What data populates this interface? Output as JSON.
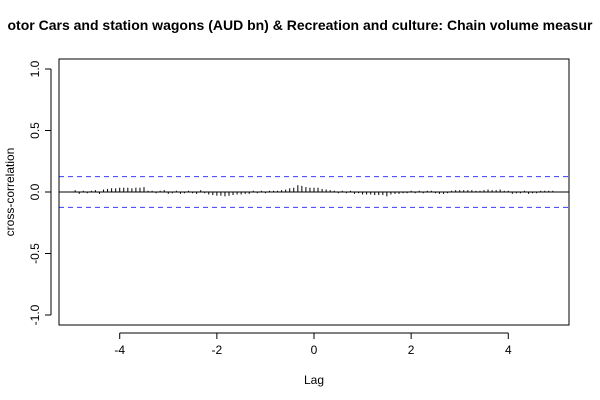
{
  "chart_data": {
    "type": "ccf",
    "title": "otor Cars and station wagons (AUD bn) & Recreation and culture: Chain volume measur",
    "xlabel": "Lag",
    "ylabel": "cross-correlation",
    "xlim": [
      -5.25,
      5.25
    ],
    "ylim": [
      -1.0,
      1.0
    ],
    "x_ticks": [
      "-4",
      "-2",
      "0",
      "2",
      "4"
    ],
    "x_tick_values": [
      -4,
      -2,
      0,
      2,
      4
    ],
    "y_ticks": [
      "-1.0",
      "-0.5",
      "0.0",
      "0.5",
      "1.0"
    ],
    "y_tick_values": [
      -1.0,
      -0.5,
      0.0,
      0.5,
      1.0
    ],
    "confidence_limit": 0.125,
    "confidence_color": "#3b3bff",
    "x": [
      -4.917,
      -4.833,
      -4.75,
      -4.667,
      -4.583,
      -4.5,
      -4.417,
      -4.333,
      -4.25,
      -4.167,
      -4.083,
      -4.0,
      -3.917,
      -3.833,
      -3.75,
      -3.667,
      -3.583,
      -3.5,
      -3.417,
      -3.333,
      -3.25,
      -3.167,
      -3.083,
      -3.0,
      -2.917,
      -2.833,
      -2.75,
      -2.667,
      -2.583,
      -2.5,
      -2.417,
      -2.333,
      -2.25,
      -2.167,
      -2.083,
      -2.0,
      -1.917,
      -1.833,
      -1.75,
      -1.667,
      -1.583,
      -1.5,
      -1.417,
      -1.333,
      -1.25,
      -1.167,
      -1.083,
      -1.0,
      -0.917,
      -0.833,
      -0.75,
      -0.667,
      -0.583,
      -0.5,
      -0.417,
      -0.333,
      -0.25,
      -0.167,
      -0.083,
      0.0,
      0.083,
      0.167,
      0.25,
      0.333,
      0.417,
      0.5,
      0.583,
      0.667,
      0.75,
      0.833,
      0.917,
      1.0,
      1.083,
      1.167,
      1.25,
      1.333,
      1.417,
      1.5,
      1.583,
      1.667,
      1.75,
      1.833,
      1.917,
      2.0,
      2.083,
      2.167,
      2.25,
      2.333,
      2.417,
      2.5,
      2.583,
      2.667,
      2.75,
      2.833,
      2.917,
      3.0,
      3.083,
      3.167,
      3.25,
      3.333,
      3.417,
      3.5,
      3.583,
      3.667,
      3.75,
      3.833,
      3.917,
      4.0,
      4.083,
      4.167,
      4.25,
      4.333,
      4.417,
      4.5,
      4.583,
      4.667,
      4.75,
      4.833,
      4.917
    ],
    "values": [
      0.015,
      -0.015,
      0.01,
      -0.01,
      0.01,
      0.015,
      -0.015,
      0.02,
      0.025,
      0.03,
      0.03,
      0.035,
      0.035,
      0.035,
      0.03,
      0.035,
      0.035,
      0.04,
      0.01,
      0.01,
      -0.01,
      0.01,
      0.015,
      -0.015,
      -0.01,
      0.01,
      -0.015,
      -0.01,
      0.01,
      -0.01,
      -0.015,
      0.015,
      -0.01,
      -0.02,
      -0.025,
      -0.03,
      -0.03,
      -0.035,
      -0.03,
      -0.025,
      -0.02,
      -0.02,
      -0.015,
      -0.015,
      0.01,
      -0.01,
      0.01,
      -0.01,
      0.01,
      0.01,
      0.01,
      0.015,
      0.02,
      0.03,
      0.035,
      0.055,
      0.05,
      0.04,
      0.035,
      0.035,
      0.035,
      0.025,
      0.02,
      0.015,
      0.01,
      -0.01,
      0.01,
      -0.01,
      0.01,
      -0.015,
      -0.01,
      -0.02,
      -0.02,
      -0.02,
      -0.025,
      -0.025,
      -0.025,
      -0.035,
      -0.02,
      -0.015,
      -0.015,
      -0.01,
      -0.01,
      0.01,
      -0.01,
      0.01,
      -0.01,
      0.01,
      0.01,
      -0.01,
      -0.015,
      -0.015,
      -0.01,
      0.01,
      0.015,
      0.015,
      0.015,
      0.015,
      0.015,
      0.01,
      0.01,
      0.015,
      0.02,
      0.015,
      0.015,
      0.02,
      0.01,
      0.01,
      -0.015,
      -0.01,
      -0.01,
      0.01,
      -0.015,
      -0.01,
      -0.01,
      0.01,
      0.01,
      0.01,
      0.01
    ],
    "grid": false,
    "legend": "none",
    "bar_color": "#000000",
    "zero_line_color": "#000000"
  }
}
